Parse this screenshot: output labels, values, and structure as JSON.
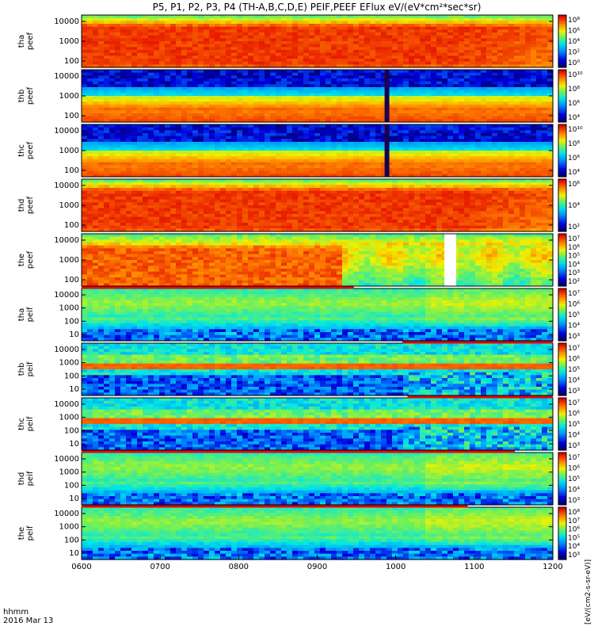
{
  "chart_data": {
    "type": "heatmap",
    "title": "P5, P1, P2, P3, P4 (TH-A,B,C,D,E) PEIF,PEEF EFlux eV/(eV*cm²*sec*sr)",
    "colorbar_label": "[eV/(cm2-s-sr-eV)]",
    "time_axis": {
      "row1_label": "hhmm",
      "row2_label": "2016 Mar 13",
      "range": [
        "0600",
        "1200"
      ],
      "ticks": [
        "0600",
        "0700",
        "0800",
        "0900",
        "1000",
        "1100",
        "1200"
      ]
    },
    "panels": [
      {
        "ylabel": [
          "tha",
          "peef"
        ],
        "yticks": [
          "10000",
          "1000",
          "100"
        ],
        "cbar_ticks": [
          "10⁸",
          "10⁶",
          "10⁴",
          "10²",
          "10⁰"
        ],
        "pattern": "hot_e",
        "gap": null,
        "dark_stripe": null
      },
      {
        "ylabel": [
          "thb",
          "peef"
        ],
        "yticks": [
          "10000",
          "1000",
          "100"
        ],
        "cbar_ticks": [
          "10¹⁰",
          "10⁸",
          "10⁶",
          "10⁴"
        ],
        "pattern": "cold_band",
        "gap": null,
        "dark_stripe": [
          0.643,
          0.653
        ]
      },
      {
        "ylabel": [
          "thc",
          "peef"
        ],
        "yticks": [
          "10000",
          "1000",
          "100"
        ],
        "cbar_ticks": [
          "10¹⁰",
          "10⁸",
          "10⁶",
          "10⁴"
        ],
        "pattern": "cold_band",
        "gap": null,
        "dark_stripe": [
          0.643,
          0.653
        ]
      },
      {
        "ylabel": [
          "thd",
          "peef"
        ],
        "yticks": [
          "10000",
          "1000",
          "100"
        ],
        "cbar_ticks": [
          "10⁶",
          "10⁴",
          "10²"
        ],
        "pattern": "hot_e",
        "gap": null,
        "dark_stripe": null
      },
      {
        "ylabel": [
          "the",
          "peef"
        ],
        "yticks": [
          "10000",
          "1000",
          "100"
        ],
        "cbar_ticks": [
          "10⁷",
          "10⁶",
          "10⁵",
          "10⁴",
          "10³",
          "10²"
        ],
        "pattern": "mixed_e",
        "gap": [
          0.77,
          0.795
        ],
        "dark_stripe": null
      },
      {
        "ylabel": [
          "tha",
          "peif"
        ],
        "yticks": [
          "10000",
          "1000",
          "100",
          "10"
        ],
        "cbar_ticks": [
          "10⁷",
          "10⁶",
          "10⁵",
          "10⁴",
          "10³"
        ],
        "pattern": "ion",
        "gap": null,
        "dark_stripe": null
      },
      {
        "ylabel": [
          "thb",
          "peif"
        ],
        "yticks": [
          "10000",
          "1000",
          "100",
          "10"
        ],
        "cbar_ticks": [
          "10⁷",
          "10⁶",
          "10⁵",
          "10⁴",
          "10³"
        ],
        "pattern": "ion_band",
        "gap": null,
        "dark_stripe": null
      },
      {
        "ylabel": [
          "thc",
          "peif"
        ],
        "yticks": [
          "10000",
          "1000",
          "100",
          "10"
        ],
        "cbar_ticks": [
          "10⁷",
          "10⁶",
          "10⁵",
          "10⁴",
          "10³"
        ],
        "pattern": "ion_band",
        "gap": null,
        "dark_stripe": null
      },
      {
        "ylabel": [
          "thd",
          "peif"
        ],
        "yticks": [
          "10000",
          "1000",
          "100",
          "10"
        ],
        "cbar_ticks": [
          "10⁷",
          "10⁶",
          "10⁵",
          "10⁴",
          "10³"
        ],
        "pattern": "ion",
        "gap": null,
        "dark_stripe": null
      },
      {
        "ylabel": [
          "the",
          "peif"
        ],
        "yticks": [
          "10000",
          "1000",
          "100",
          "10"
        ],
        "cbar_ticks": [
          "10⁸",
          "10⁷",
          "10⁶",
          "10⁵",
          "10⁴",
          "10³"
        ],
        "pattern": "ion",
        "gap": null,
        "dark_stripe": null
      }
    ],
    "status_bars": [
      {
        "color": "#e80000",
        "x_range": [
          "0600",
          "0928"
        ]
      },
      {
        "color": "#e80000",
        "x_range": [
          "1005",
          "1200"
        ]
      },
      {
        "color": "#e80000",
        "x_range": [
          "1009",
          "1200"
        ]
      },
      {
        "color": "#e80000",
        "x_range": [
          "0600",
          "1091"
        ]
      },
      {
        "color": "#e80000",
        "x_range": [
          "0600",
          "1055"
        ]
      }
    ]
  }
}
